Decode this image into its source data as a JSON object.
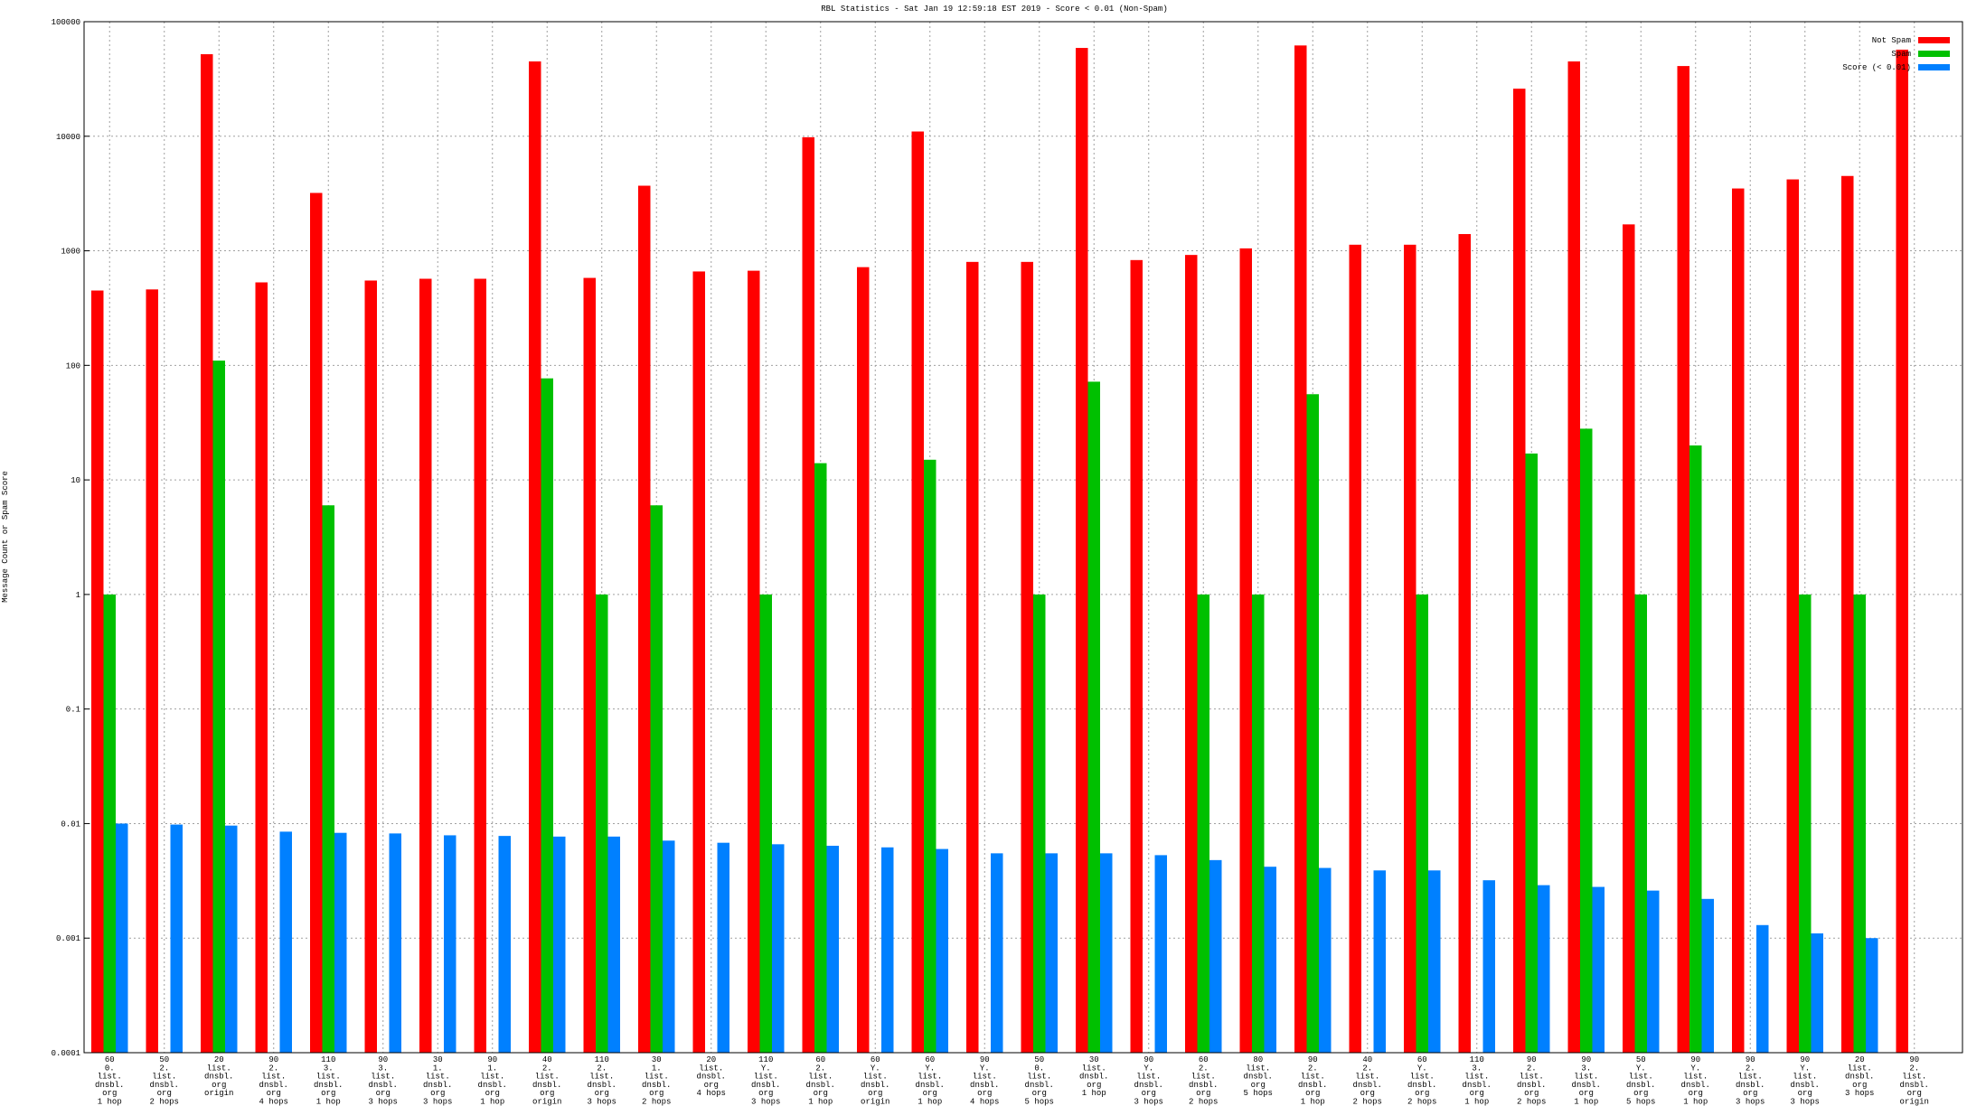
{
  "chart_data": {
    "type": "bar",
    "title": "RBL Statistics - Sat Jan 19 12:59:18 EST 2019 - Score < 0.01 (Non-Spam)",
    "y_label": "Message Count or Spam Score",
    "log_scale": true,
    "grid": true,
    "legend": "upper right",
    "ylim": [
      0.0001,
      100000
    ],
    "yticks": [
      0.0001,
      0.001,
      0.01,
      0.1,
      1,
      10,
      100,
      1000,
      10000,
      100000
    ],
    "categories": [
      "60\n0.\nlist.\ndnsbl.\norg\n1 hop",
      "50\n2.\nlist.\ndnsbl.\norg\n2 hops",
      "20\nlist.\ndnsbl.\norg\norigin",
      "90\n2.\nlist.\ndnsbl.\norg\n4 hops",
      "110\n3.\nlist.\ndnsbl.\norg\n1 hop",
      "90\n3.\nlist.\ndnsbl.\norg\n3 hops",
      "30\n1.\nlist.\ndnsbl.\norg\n3 hops",
      "90\n1.\nlist.\ndnsbl.\norg\n1 hop",
      "40\n2.\nlist.\ndnsbl.\norg\norigin",
      "110\n2.\nlist.\ndnsbl.\norg\n3 hops",
      "30\n1.\nlist.\ndnsbl.\norg\n2 hops",
      "20\nlist.\ndnsbl.\norg\n4 hops",
      "110\nY.\nlist.\ndnsbl.\norg\n3 hops",
      "60\n2.\nlist.\ndnsbl.\norg\n1 hop",
      "60\nY.\nlist.\ndnsbl.\norg\norigin",
      "60\nY.\nlist.\ndnsbl.\norg\n1 hop",
      "90\nY.\nlist.\ndnsbl.\norg\n4 hops",
      "50\n0.\nlist.\ndnsbl.\norg\n5 hops",
      "30\nlist.\ndnsbl.\norg\n1 hop",
      "90\nY.\nlist.\ndnsbl.\norg\n3 hops",
      "60\n2.\nlist.\ndnsbl.\norg\n2 hops",
      "80\nlist.\ndnsbl.\norg\n5 hops",
      "90\n2.\nlist.\ndnsbl.\norg\n1 hop",
      "40\n2.\nlist.\ndnsbl.\norg\n2 hops",
      "60\nY.\nlist.\ndnsbl.\norg\n2 hops",
      "110\n3.\nlist.\ndnsbl.\norg\n1 hop",
      "90\n2.\nlist.\ndnsbl.\norg\n2 hops",
      "90\n3.\nlist.\ndnsbl.\norg\n1 hop",
      "50\nY.\nlist.\ndnsbl.\norg\n5 hops",
      "90\nY.\nlist.\ndnsbl.\norg\n1 hop",
      "90\n2.\nlist.\ndnsbl.\norg\n3 hops",
      "90\nY.\nlist.\ndnsbl.\norg\n3 hops",
      "20\nlist.\ndnsbl.\norg\n3 hops",
      "90\n2.\nlist.\ndnsbl.\norg\norigin"
    ],
    "series": [
      {
        "name": "Not Spam",
        "color": "#ff0000",
        "values": [
          450,
          460,
          52000,
          530,
          3200,
          550,
          570,
          570,
          45000,
          580,
          3700,
          660,
          670,
          9800,
          720,
          11000,
          800,
          800,
          59000,
          830,
          920,
          1050,
          62000,
          1130,
          1130,
          1400,
          26000,
          45000,
          1700,
          41000,
          3500,
          4200,
          4500,
          57000
        ]
      },
      {
        "name": "Spam",
        "color": "#00c000",
        "values": [
          1,
          null,
          110,
          null,
          6,
          null,
          null,
          null,
          77,
          1,
          6,
          null,
          1,
          14,
          null,
          15,
          null,
          1,
          72,
          null,
          1,
          1,
          56,
          null,
          1,
          null,
          17,
          28,
          1,
          20,
          null,
          1,
          1,
          null
        ]
      },
      {
        "name": "Score (< 0.01)",
        "color": "#0080ff",
        "values": [
          0.01,
          0.0098,
          0.0096,
          0.0085,
          0.0083,
          0.0082,
          0.0079,
          0.0078,
          0.0077,
          0.0077,
          0.0071,
          0.0068,
          0.0066,
          0.0064,
          0.0062,
          0.006,
          0.0055,
          0.0055,
          0.0055,
          0.0053,
          0.0048,
          0.0042,
          0.0041,
          0.0039,
          0.0039,
          0.0032,
          0.0029,
          0.0028,
          0.0026,
          0.0022,
          0.0013,
          0.0011,
          0.001,
          null
        ]
      }
    ]
  }
}
